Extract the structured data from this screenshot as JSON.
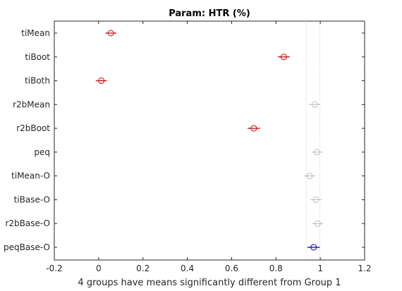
{
  "chart_data": {
    "type": "scatter",
    "title": "Param: HTR (%)",
    "xlabel": "4 groups have means significantly different from Group 1",
    "ylabel": "",
    "xlim": [
      -0.2,
      1.2
    ],
    "xticks": [
      -0.2,
      0,
      0.2,
      0.4,
      0.6,
      0.8,
      1,
      1.2
    ],
    "xtick_labels": [
      "-0.2",
      "0",
      "0.2",
      "0.4",
      "0.6",
      "0.8",
      "1",
      "1.2"
    ],
    "comparison_interval": [
      0.937,
      0.998
    ],
    "groups": [
      {
        "name": "tiMean",
        "mean": 0.055,
        "low": 0.03,
        "high": 0.08,
        "status": "significant"
      },
      {
        "name": "tiBoot",
        "mean": 0.835,
        "low": 0.808,
        "high": 0.862,
        "status": "significant"
      },
      {
        "name": "tiBoth",
        "mean": 0.012,
        "low": -0.013,
        "high": 0.037,
        "status": "significant"
      },
      {
        "name": "r2bMean",
        "mean": 0.975,
        "low": 0.95,
        "high": 1.0,
        "status": "not-significant"
      },
      {
        "name": "r2bBoot",
        "mean": 0.7,
        "low": 0.672,
        "high": 0.728,
        "status": "significant"
      },
      {
        "name": "peq",
        "mean": 0.985,
        "low": 0.96,
        "high": 1.01,
        "status": "not-significant"
      },
      {
        "name": "tiMean-O",
        "mean": 0.952,
        "low": 0.927,
        "high": 0.977,
        "status": "not-significant"
      },
      {
        "name": "tiBase-O",
        "mean": 0.98,
        "low": 0.955,
        "high": 1.005,
        "status": "not-significant"
      },
      {
        "name": "r2bBase-O",
        "mean": 0.988,
        "low": 0.963,
        "high": 1.013,
        "status": "not-significant"
      },
      {
        "name": "peqBase-O",
        "mean": 0.97,
        "low": 0.942,
        "high": 0.998,
        "status": "selected"
      }
    ],
    "colors": {
      "significant": "#cc0000",
      "not-significant": "#c0c0c0",
      "selected": "#000099",
      "axis": "#262626",
      "reference": "#c8c8c8"
    },
    "grid": false,
    "legend": "none"
  }
}
